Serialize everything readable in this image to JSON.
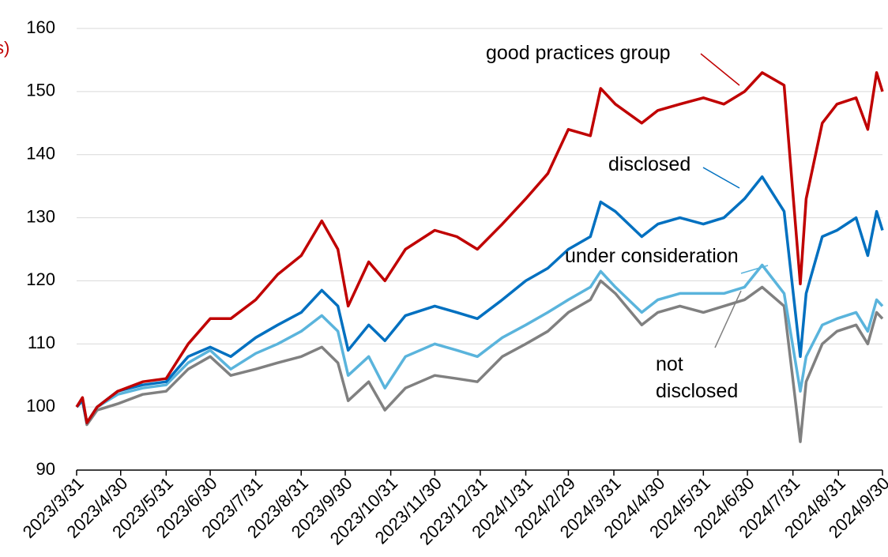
{
  "chart_data": {
    "type": "line",
    "y_label": "s)",
    "x": [
      "2023/3/31",
      "2023/4/4",
      "2023/4/7",
      "2023/4/14",
      "2023/4/28",
      "2023/5/15",
      "2023/5/31",
      "2023/6/15",
      "2023/6/30",
      "2023/7/14",
      "2023/7/31",
      "2023/8/15",
      "2023/8/31",
      "2023/9/14",
      "2023/9/25",
      "2023/10/2",
      "2023/10/16",
      "2023/10/27",
      "2023/11/10",
      "2023/11/30",
      "2023/12/15",
      "2023/12/29",
      "2024/1/15",
      "2024/1/31",
      "2024/2/15",
      "2024/2/29",
      "2024/3/15",
      "2024/3/22",
      "2024/4/1",
      "2024/4/19",
      "2024/4/30",
      "2024/5/15",
      "2024/5/31",
      "2024/6/14",
      "2024/6/28",
      "2024/7/10",
      "2024/7/25",
      "2024/8/5",
      "2024/8/9",
      "2024/8/20",
      "2024/8/30",
      "2024/9/12",
      "2024/9/20",
      "2024/9/26",
      "2024/9/30"
    ],
    "series": [
      {
        "name": "not disclosed",
        "color": "#808080",
        "values": [
          100,
          101,
          97.2,
          99.5,
          100.5,
          102,
          102.5,
          106,
          108,
          105,
          106,
          107,
          108,
          109.5,
          107,
          101,
          104,
          99.5,
          103,
          105,
          104.5,
          104,
          108,
          110,
          112,
          115,
          117,
          120,
          118,
          113,
          115,
          116,
          115,
          116,
          117,
          119,
          116,
          94.5,
          104,
          110,
          112,
          113,
          110,
          115,
          114
        ]
      },
      {
        "name": "under consideration",
        "color": "#5ab4dc",
        "values": [
          100,
          101,
          97.5,
          100,
          102,
          103,
          103.5,
          107,
          109,
          106,
          108.5,
          110,
          112,
          114.5,
          112,
          105,
          108,
          103,
          108,
          110,
          109,
          108,
          111,
          113,
          115,
          117,
          119,
          121.5,
          119,
          115,
          117,
          118,
          118,
          118,
          119,
          122.5,
          118,
          102.5,
          108,
          113,
          114,
          115,
          112,
          117,
          116
        ]
      },
      {
        "name": "disclosed",
        "color": "#0070c0",
        "values": [
          100,
          101,
          97.5,
          100,
          102.5,
          103.5,
          104,
          108,
          109.5,
          108,
          111,
          113,
          115,
          118.5,
          116,
          109,
          113,
          110.5,
          114.5,
          116,
          115,
          114,
          117,
          120,
          122,
          125,
          127,
          132.5,
          131,
          127,
          129,
          130,
          129,
          130,
          133,
          136.5,
          131,
          108,
          118,
          127,
          128,
          130,
          124,
          131,
          128
        ]
      },
      {
        "name": "good practices group",
        "color": "#c00000",
        "values": [
          100,
          101.5,
          97.5,
          100,
          102.5,
          104,
          104.5,
          110,
          114,
          114,
          117,
          121,
          124,
          129.5,
          125,
          116,
          123,
          120,
          125,
          128,
          127,
          125,
          129,
          133,
          137,
          144,
          143,
          150.5,
          148,
          145,
          147,
          148,
          149,
          148,
          150,
          153,
          151,
          119.5,
          133,
          145,
          148,
          149,
          144,
          153,
          150
        ]
      }
    ],
    "annotations": [
      {
        "series": 3,
        "lines": [
          "good practices group"
        ]
      },
      {
        "series": 2,
        "lines": [
          "disclosed"
        ]
      },
      {
        "series": 1,
        "lines": [
          "under consideration"
        ]
      },
      {
        "series": 0,
        "lines": [
          "not",
          "disclosed"
        ]
      }
    ],
    "xlim": [
      "2023/3/31",
      "2024/9/30"
    ],
    "xticks": [
      "2023/3/31",
      "2023/4/30",
      "2023/5/31",
      "2023/6/30",
      "2023/7/31",
      "2023/8/31",
      "2023/9/30",
      "2023/10/31",
      "2023/11/30",
      "2023/12/31",
      "2024/1/31",
      "2024/2/29",
      "2024/3/31",
      "2024/4/30",
      "2024/5/31",
      "2024/6/30",
      "2024/7/31",
      "2024/8/31",
      "2024/9/30"
    ],
    "ylim": [
      90,
      160
    ],
    "yticks": [
      90,
      100,
      110,
      120,
      130,
      140,
      150,
      160
    ],
    "grid": true
  }
}
